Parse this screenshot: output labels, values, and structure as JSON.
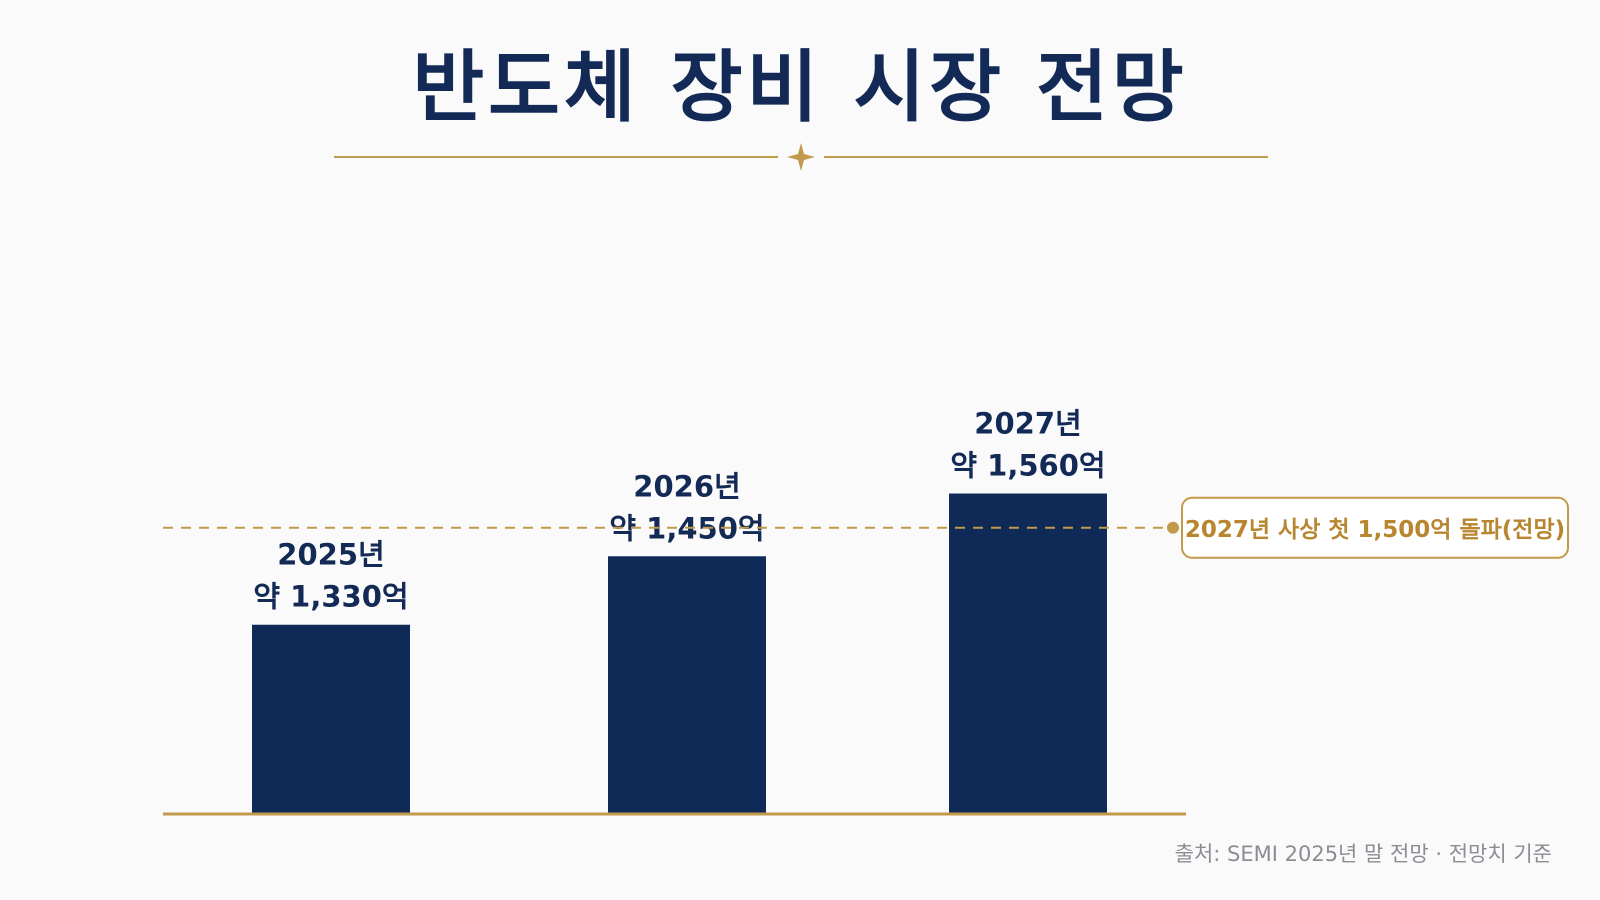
{
  "title": "반도체 장비 시장 전망",
  "source": "출처: SEMI 2025년 말 전망 · 전망치 기준",
  "colors": {
    "bar": "#0f2a57",
    "title": "#132a57",
    "gold": "#c29a4b",
    "annotation_text": "#b8862f",
    "label": "#132a57",
    "source": "#8a8d94"
  },
  "chart_data": {
    "type": "bar",
    "categories": [
      "2025년",
      "2026년",
      "2027년"
    ],
    "values": [
      1330,
      1450,
      1560
    ],
    "value_labels": [
      "약 1,330억",
      "약 1,450억",
      "약 1,560억"
    ],
    "title": "반도체 장비 시장 전망",
    "xlabel": "",
    "ylabel": "",
    "ylim": [
      0,
      1650
    ],
    "grid": false,
    "reference_line": {
      "value": 1500,
      "label": "2027년 사상 첫 1,500억 돌파(전망)",
      "style": "dashed"
    }
  }
}
